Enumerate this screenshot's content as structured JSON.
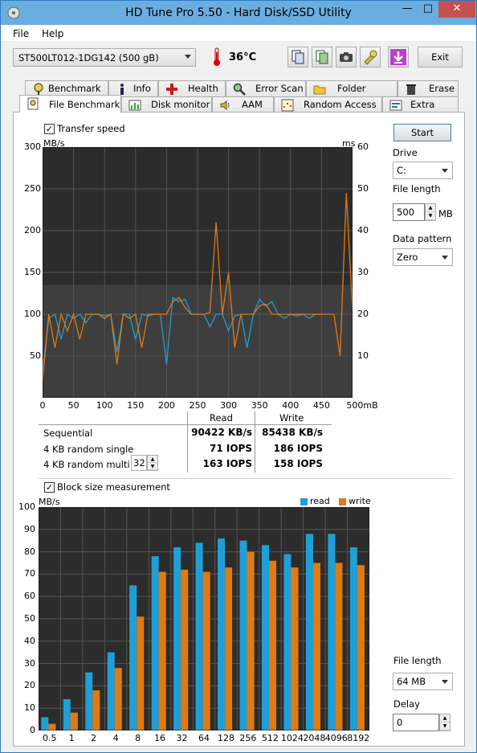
{
  "window": {
    "title": "HD Tune Pro 5.50 - Hard Disk/SSD Utility",
    "min": "—",
    "max": "□",
    "close": "✕"
  },
  "menu": {
    "file": "File",
    "help": "Help"
  },
  "toolbar": {
    "drive": "ST500LT012-1DG142 (500 gB)",
    "temperature": "36°C",
    "exit": "Exit",
    "icons": [
      "copy-info-icon",
      "copy-screenshot-icon",
      "camera-icon",
      "tools-icon",
      "download-icon"
    ]
  },
  "tabs_top": [
    "Benchmark",
    "Info",
    "Health",
    "Error Scan",
    "Folder Usage",
    "Erase"
  ],
  "tabs_bottom": [
    "File Benchmark",
    "Disk monitor",
    "AAM",
    "Random Access",
    "Extra tests"
  ],
  "active_tab": "File Benchmark",
  "transfer": {
    "checkbox_label": "Transfer speed",
    "checked": true,
    "unit_left": "MB/s",
    "unit_right": "ms",
    "y_left": [
      "300",
      "250",
      "200",
      "150",
      "100",
      "50"
    ],
    "y_right": [
      "60",
      "50",
      "40",
      "30",
      "20",
      "10"
    ],
    "x": [
      "0",
      "50",
      "100",
      "150",
      "200",
      "250",
      "300",
      "350",
      "400",
      "450",
      "500mB"
    ]
  },
  "controls": {
    "start": "Start",
    "drive_label": "Drive",
    "drive_value": "C:",
    "file_length_label": "File length",
    "file_length_value": "500",
    "file_length_unit": "MB",
    "pattern_label": "Data pattern",
    "pattern_value": "Zero"
  },
  "results": {
    "col_read": "Read",
    "col_write": "Write",
    "rows": [
      {
        "label": "Sequential",
        "read": "90422 KB/s",
        "write": "85438 KB/s"
      },
      {
        "label": "4 KB random single",
        "read": "71 IOPS",
        "write": "186 IOPS"
      },
      {
        "label": "4 KB random multi",
        "read": "163 IOPS",
        "write": "158 IOPS"
      }
    ],
    "queue_depth": "32"
  },
  "block": {
    "checkbox_label": "Block size measurement",
    "checked": true,
    "unit": "MB/s",
    "legend_read": "read",
    "legend_write": "write",
    "file_length_label": "File length",
    "file_length_value": "64 MB",
    "delay_label": "Delay",
    "delay_value": "0"
  },
  "colors": {
    "read": "#1f9fd6",
    "write": "#e07a12",
    "chart_bg": "#2b2b2b"
  },
  "chart_data": [
    {
      "type": "line",
      "title": "Transfer speed",
      "xlabel": "mB",
      "ylabel": "MB/s",
      "y2label": "ms",
      "xlim": [
        0,
        500
      ],
      "ylim": [
        0,
        300
      ],
      "y2lim": [
        0,
        60
      ],
      "grid": true,
      "series": [
        {
          "name": "read",
          "x": [
            0,
            10,
            20,
            30,
            40,
            50,
            60,
            70,
            80,
            90,
            100,
            110,
            120,
            130,
            140,
            150,
            160,
            170,
            180,
            190,
            200,
            210,
            220,
            230,
            240,
            250,
            260,
            270,
            280,
            290,
            300,
            310,
            320,
            330,
            340,
            350,
            360,
            370,
            380,
            390,
            400,
            410,
            420,
            430,
            440,
            450
          ],
          "values": [
            30,
            95,
            100,
            70,
            100,
            95,
            100,
            90,
            100,
            100,
            98,
            100,
            55,
            100,
            100,
            70,
            100,
            98,
            100,
            100,
            40,
            120,
            115,
            118,
            100,
            100,
            100,
            85,
            100,
            100,
            80,
            98,
            100,
            60,
            100,
            118,
            110,
            115,
            100,
            95,
            100,
            98,
            100,
            95,
            100,
            100
          ]
        },
        {
          "name": "write",
          "x": [
            0,
            10,
            20,
            30,
            40,
            50,
            60,
            70,
            80,
            90,
            100,
            110,
            120,
            130,
            140,
            150,
            160,
            170,
            180,
            190,
            200,
            210,
            220,
            230,
            240,
            250,
            260,
            270,
            280,
            290,
            300,
            310,
            320,
            330,
            340,
            350,
            360,
            370,
            380,
            390,
            400,
            410,
            420,
            430,
            440,
            450,
            460,
            470,
            480,
            490,
            500
          ],
          "values": [
            20,
            100,
            60,
            100,
            80,
            100,
            70,
            100,
            100,
            100,
            95,
            100,
            40,
            100,
            95,
            100,
            60,
            100,
            100,
            100,
            100,
            115,
            120,
            108,
            100,
            100,
            100,
            102,
            210,
            100,
            150,
            60,
            100,
            100,
            100,
            110,
            112,
            100,
            100,
            100,
            100,
            100,
            100,
            100,
            100,
            100,
            100,
            100,
            50,
            245,
            105
          ]
        }
      ]
    },
    {
      "type": "bar",
      "title": "Block size measurement",
      "ylabel": "MB/s",
      "ylim": [
        0,
        100
      ],
      "categories": [
        "0.5",
        "1",
        "2",
        "4",
        "8",
        "16",
        "32",
        "64",
        "128",
        "256",
        "512",
        "1024",
        "2048",
        "4096",
        "8192"
      ],
      "series": [
        {
          "name": "read",
          "values": [
            6,
            14,
            26,
            35,
            65,
            78,
            82,
            84,
            86,
            85,
            83,
            79,
            88,
            88,
            82
          ]
        },
        {
          "name": "write",
          "values": [
            3,
            8,
            18,
            28,
            51,
            71,
            72,
            71,
            73,
            80,
            76,
            73,
            75,
            75,
            74
          ]
        }
      ]
    }
  ]
}
